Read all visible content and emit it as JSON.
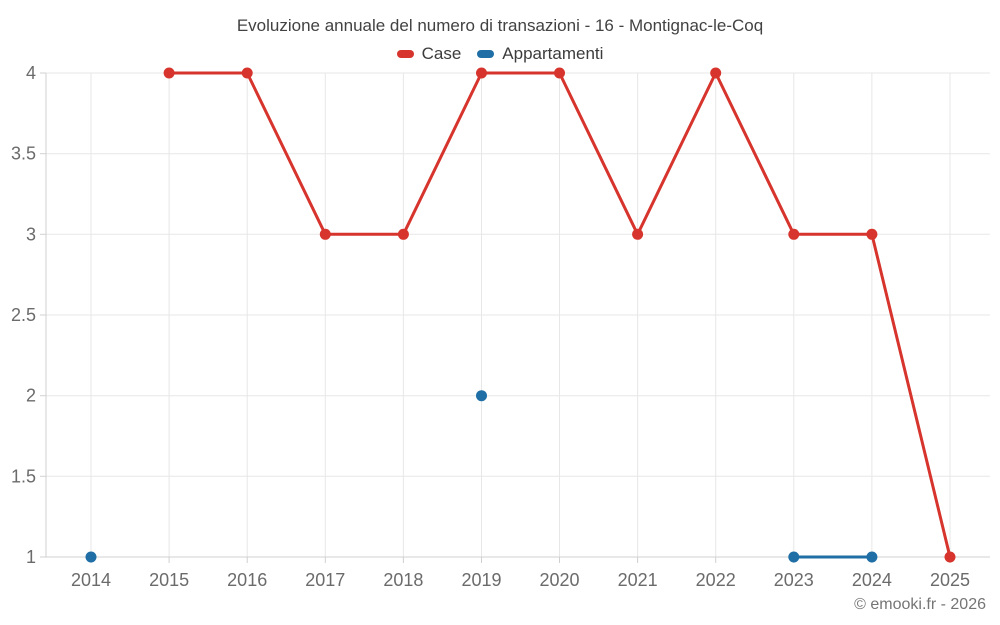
{
  "footer": {
    "text": "© emooki.fr - 2026"
  },
  "colors": {
    "grid": "#e7e7e7",
    "axis": "#d0d0d0",
    "tick_text": "#6b6b6b",
    "title_text": "#424242",
    "legend_text": "#3c3c3c",
    "footer_text": "#757575",
    "case_red": "#d6342c",
    "appartamenti_blue": "#1f6fa6"
  },
  "chart_data": {
    "type": "line",
    "title": "Evoluzione annuale del numero di transazioni - 16 - Montignac-le-Coq",
    "categories": [
      "2014",
      "2015",
      "2016",
      "2017",
      "2018",
      "2019",
      "2020",
      "2021",
      "2022",
      "2023",
      "2024",
      "2025"
    ],
    "series": [
      {
        "name": "Case",
        "color": "#d6342c",
        "values": [
          null,
          4,
          4,
          3,
          3,
          4,
          4,
          3,
          4,
          3,
          3,
          1
        ]
      },
      {
        "name": "Appartamenti",
        "color": "#1f6fa6",
        "values": [
          1,
          null,
          null,
          null,
          null,
          2,
          null,
          null,
          null,
          1,
          1,
          null
        ]
      }
    ],
    "xlabel": "",
    "ylabel": "",
    "ylim": [
      1,
      4
    ],
    "ytick_step": 0.5,
    "grid": true,
    "legend_position": "top"
  }
}
